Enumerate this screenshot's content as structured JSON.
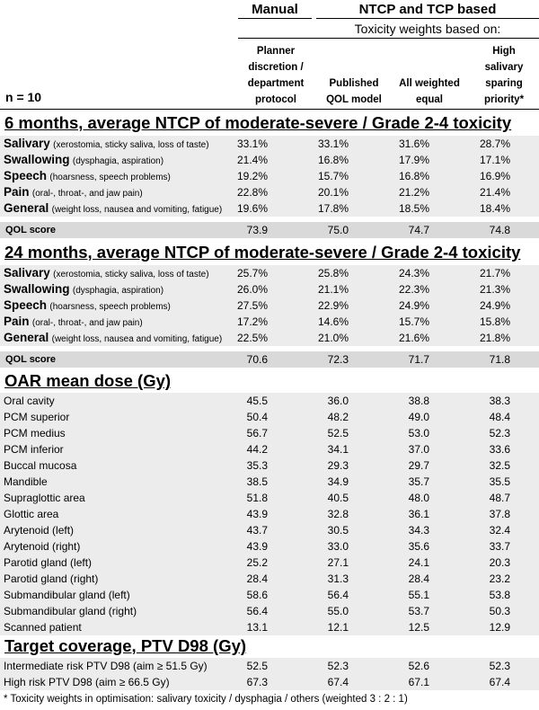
{
  "header": {
    "manual": "Manual",
    "ntcp_tcp": "NTCP and TCP based",
    "subheader": "Toxicity weights based on:",
    "columns": [
      "Planner discretion / department protocol",
      "Published QOL model",
      "All weighted equal",
      "High salivary sparing priority*"
    ],
    "col_lines": [
      [
        "Planner",
        "discretion /",
        "department",
        "protocol"
      ],
      [
        "Published",
        "QOL model"
      ],
      [
        "All weighted",
        "equal"
      ],
      [
        "High",
        "salivary",
        "sparing",
        "priority*"
      ]
    ],
    "n_label": "n = 10"
  },
  "sections": {
    "m6": {
      "title": "6 months, average NTCP of moderate-severe / Grade 2-4 toxicity",
      "rows": [
        {
          "name": "Salivary",
          "desc": "(xerostomia, sticky saliva, loss of taste)",
          "values": [
            "33.1%",
            "33.1%",
            "31.6%",
            "28.7%"
          ]
        },
        {
          "name": "Swallowing",
          "desc": "(dysphagia, aspiration)",
          "values": [
            "21.4%",
            "16.8%",
            "17.9%",
            "17.1%"
          ]
        },
        {
          "name": "Speech",
          "desc": "(hoarsness, speech problems)",
          "values": [
            "19.2%",
            "15.7%",
            "16.8%",
            "16.9%"
          ]
        },
        {
          "name": "Pain",
          "desc": "(oral-, throat-, and jaw pain)",
          "values": [
            "22.8%",
            "20.1%",
            "21.2%",
            "21.4%"
          ]
        },
        {
          "name": "General",
          "desc": "(weight loss, nausea and vomiting, fatigue)",
          "values": [
            "19.6%",
            "17.8%",
            "18.5%",
            "18.4%"
          ]
        }
      ],
      "qol": {
        "label": "QOL score",
        "values": [
          "73.9",
          "75.0",
          "74.7",
          "74.8"
        ]
      }
    },
    "m24": {
      "title": "24 months, average NTCP of moderate-severe / Grade 2-4 toxicity",
      "rows": [
        {
          "name": "Salivary",
          "desc": "(xerostomia, sticky saliva, loss of taste)",
          "values": [
            "25.7%",
            "25.8%",
            "24.3%",
            "21.7%"
          ]
        },
        {
          "name": "Swallowing",
          "desc": "(dysphagia, aspiration)",
          "values": [
            "26.0%",
            "21.1%",
            "22.3%",
            "21.3%"
          ]
        },
        {
          "name": "Speech",
          "desc": "(hoarsness, speech problems)",
          "values": [
            "27.5%",
            "22.9%",
            "24.9%",
            "24.9%"
          ]
        },
        {
          "name": "Pain",
          "desc": "(oral-, throat-, and jaw pain)",
          "values": [
            "17.2%",
            "14.6%",
            "15.7%",
            "15.8%"
          ]
        },
        {
          "name": "General",
          "desc": "(weight loss, nausea and vomiting, fatigue)",
          "values": [
            "22.5%",
            "21.0%",
            "21.6%",
            "21.8%"
          ]
        }
      ],
      "qol": {
        "label": "QOL score",
        "values": [
          "70.6",
          "72.3",
          "71.7",
          "71.8"
        ]
      }
    },
    "oar": {
      "title": "OAR mean dose (Gy)",
      "rows": [
        {
          "name": "Oral cavity",
          "values": [
            "45.5",
            "36.0",
            "38.8",
            "38.3"
          ]
        },
        {
          "name": "PCM superior",
          "values": [
            "50.4",
            "48.2",
            "49.0",
            "48.4"
          ]
        },
        {
          "name": "PCM medius",
          "values": [
            "56.7",
            "52.5",
            "53.0",
            "52.3"
          ]
        },
        {
          "name": "PCM inferior",
          "values": [
            "44.2",
            "34.1",
            "37.0",
            "33.6"
          ]
        },
        {
          "name": "Buccal mucosa",
          "values": [
            "35.3",
            "29.3",
            "29.7",
            "32.5"
          ]
        },
        {
          "name": "Mandible",
          "values": [
            "38.5",
            "34.9",
            "35.7",
            "35.5"
          ]
        },
        {
          "name": "Supraglottic area",
          "values": [
            "51.8",
            "40.5",
            "48.0",
            "48.7"
          ]
        },
        {
          "name": "Glottic area",
          "values": [
            "43.9",
            "32.8",
            "36.1",
            "37.8"
          ]
        },
        {
          "name": "Arytenoid (left)",
          "values": [
            "43.7",
            "30.5",
            "34.3",
            "32.4"
          ]
        },
        {
          "name": "Arytenoid (right)",
          "values": [
            "43.9",
            "33.0",
            "35.6",
            "33.7"
          ]
        },
        {
          "name": "Parotid gland (left)",
          "values": [
            "25.2",
            "27.1",
            "24.1",
            "20.3"
          ]
        },
        {
          "name": "Parotid gland (right)",
          "values": [
            "28.4",
            "31.3",
            "28.4",
            "23.2"
          ]
        },
        {
          "name": "Submandibular gland (left)",
          "values": [
            "58.6",
            "56.4",
            "55.1",
            "53.8"
          ]
        },
        {
          "name": "Submandibular gland (right)",
          "values": [
            "56.4",
            "55.0",
            "53.7",
            "50.3"
          ]
        },
        {
          "name": "Scanned patient",
          "values": [
            "13.1",
            "12.1",
            "12.5",
            "12.9"
          ]
        }
      ]
    },
    "target": {
      "title": "Target coverage, PTV D98 (Gy)",
      "rows": [
        {
          "name": "Intermediate risk PTV D98 (aim ≥ 51.5 Gy)",
          "values": [
            "52.5",
            "52.3",
            "52.6",
            "52.3"
          ]
        },
        {
          "name": "High risk PTV D98 (aim ≥ 66.5 Gy)",
          "values": [
            "67.3",
            "67.4",
            "67.1",
            "67.4"
          ]
        }
      ]
    }
  },
  "footnote": "* Toxicity weights in optimisation: salivary toxicity / dysphagia / others (weighted 3 : 2 : 1)"
}
